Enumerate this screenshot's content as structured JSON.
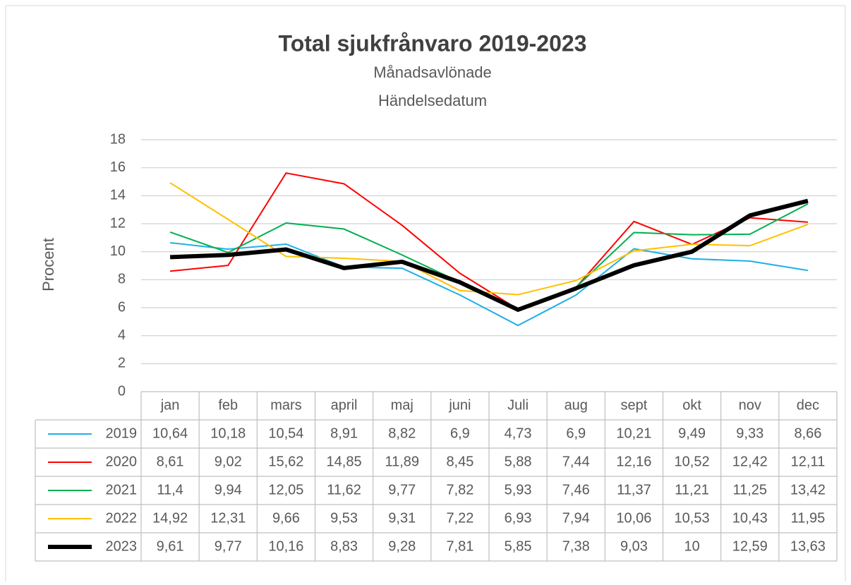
{
  "chart_data": {
    "type": "line",
    "title": "Total sjukfrånvaro 2019-2023",
    "subtitle": [
      "Månadsavlönade",
      "Händelsedatum"
    ],
    "y_label": "Procent",
    "categories": [
      "jan",
      "feb",
      "mars",
      "april",
      "maj",
      "juni",
      "Juli",
      "aug",
      "sept",
      "okt",
      "nov",
      "dec"
    ],
    "series": [
      {
        "name": "2019",
        "color": "#1fb0e6",
        "width": 2,
        "values": [
          10.64,
          10.18,
          10.54,
          8.91,
          8.82,
          6.9,
          4.73,
          6.9,
          10.21,
          9.49,
          9.33,
          8.66
        ],
        "value_labels": [
          "10,64",
          "10,18",
          "10,54",
          "8,91",
          "8,82",
          "6,9",
          "4,73",
          "6,9",
          "10,21",
          "9,49",
          "9,33",
          "8,66"
        ]
      },
      {
        "name": "2020",
        "color": "#ff0000",
        "width": 2,
        "values": [
          8.61,
          9.02,
          15.62,
          14.85,
          11.89,
          8.45,
          5.88,
          7.44,
          12.16,
          10.52,
          12.42,
          12.11
        ],
        "value_labels": [
          "8,61",
          "9,02",
          "15,62",
          "14,85",
          "11,89",
          "8,45",
          "5,88",
          "7,44",
          "12,16",
          "10,52",
          "12,42",
          "12,11"
        ]
      },
      {
        "name": "2021",
        "color": "#00b050",
        "width": 2,
        "values": [
          11.4,
          9.94,
          12.05,
          11.62,
          9.77,
          7.82,
          5.93,
          7.46,
          11.37,
          11.21,
          11.25,
          13.42
        ],
        "value_labels": [
          "11,4",
          "9,94",
          "12,05",
          "11,62",
          "9,77",
          "7,82",
          "5,93",
          "7,46",
          "11,37",
          "11,21",
          "11,25",
          "13,42"
        ]
      },
      {
        "name": "2022",
        "color": "#ffc000",
        "width": 2,
        "values": [
          14.92,
          12.31,
          9.66,
          9.53,
          9.31,
          7.22,
          6.93,
          7.94,
          10.06,
          10.53,
          10.43,
          11.95
        ],
        "value_labels": [
          "14,92",
          "12,31",
          "9,66",
          "9,53",
          "9,31",
          "7,22",
          "6,93",
          "7,94",
          "10,06",
          "10,53",
          "10,43",
          "11,95"
        ]
      },
      {
        "name": "2023",
        "color": "#000000",
        "width": 6,
        "values": [
          9.61,
          9.77,
          10.16,
          8.83,
          9.28,
          7.81,
          5.85,
          7.38,
          9.03,
          10,
          12.59,
          13.63
        ],
        "value_labels": [
          "9,61",
          "9,77",
          "10,16",
          "8,83",
          "9,28",
          "7,81",
          "5,85",
          "7,38",
          "9,03",
          null,
          "12,59",
          "13,63"
        ]
      }
    ],
    "ylim": [
      0,
      18
    ],
    "yticks": [
      0,
      2,
      4,
      6,
      8,
      10,
      12,
      14,
      16,
      18
    ],
    "grid": true
  }
}
